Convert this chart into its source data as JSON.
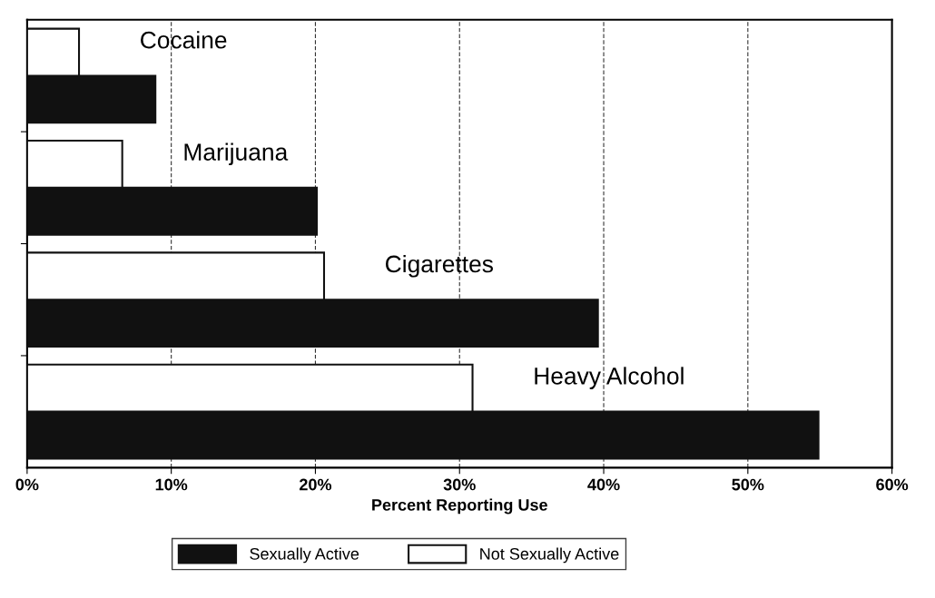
{
  "chart_data": {
    "type": "bar",
    "orientation": "horizontal",
    "xlabel": "Percent Reporting Use",
    "categories": [
      "Cocaine",
      "Marijuana",
      "Cigarettes",
      "Heavy Alcohol"
    ],
    "series": [
      {
        "name": "Sexually Active",
        "color": "#111111",
        "values": [
          8.9,
          20.1,
          39.6,
          54.9
        ]
      },
      {
        "name": "Not Sexually Active",
        "color": "#ffffff",
        "values": [
          3.6,
          6.6,
          20.6,
          30.9
        ]
      }
    ],
    "xlim": [
      0,
      60
    ],
    "xticks": [
      {
        "value": 0,
        "label": "0%"
      },
      {
        "value": 10,
        "label": "10%"
      },
      {
        "value": 20,
        "label": "20%"
      },
      {
        "value": 30,
        "label": "30%"
      },
      {
        "value": 40,
        "label": "40%"
      },
      {
        "value": 50,
        "label": "50%"
      },
      {
        "value": 60,
        "label": "60%"
      }
    ],
    "grid": "x",
    "legend": "bottom"
  }
}
